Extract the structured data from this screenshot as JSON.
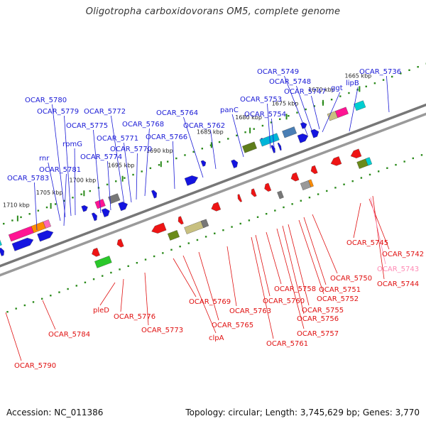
{
  "title": "Oligotropha carboxidovorans OM5, complete genome",
  "footer": {
    "accession": "Accession: NC_011386",
    "summary": "Topology: circular; Length: 3,745,629 bp; Genes: 3,770"
  },
  "colors": {
    "backbone": "#8a8a8a",
    "forward_label": "#1a1ad6",
    "reverse_label": "#e01010",
    "pseudo_label": "#ff8ab4",
    "tick": "#2a8a1a"
  },
  "scale": {
    "ticks": [
      "1710 kbp",
      "1705 kbp",
      "1700 kbp",
      "1695 kbp",
      "1690 kbp",
      "1685 kbp",
      "1680 kbp",
      "1675 kbp",
      "1670 kbp",
      "1665 kbp"
    ]
  },
  "forward_labels": [
    "OCAR_5783",
    "rnr",
    "OCAR_5781",
    "rpmG",
    "OCAR_5779",
    "OCAR_5780",
    "OCAR_5775",
    "OCAR_5774",
    "OCAR_5772",
    "OCAR_5771",
    "OCAR_5770",
    "OCAR_5768",
    "OCAR_5766",
    "OCAR_5764",
    "OCAR_5762",
    "panC",
    "OCAR_5753",
    "OCAR_5754",
    "OCAR_5749",
    "OCAR_5748",
    "OCAR_5747",
    "ggt",
    "lipB",
    "OCAR_5736"
  ],
  "reverse_labels": [
    "OCAR_5790",
    "OCAR_5784",
    "pleD",
    "OCAR_5776",
    "OCAR_5773",
    "OCAR_5769",
    "clpA",
    "OCAR_5765",
    "OCAR_5763",
    "OCAR_5761",
    "OCAR_5760",
    "OCAR_5758",
    "OCAR_5757",
    "OCAR_5756",
    "OCAR_5755",
    "OCAR_5752",
    "OCAR_5751",
    "OCAR_5750",
    "OCAR_5745",
    "OCAR_5742",
    "OCAR_5744"
  ],
  "pseudo_labels": [
    "OCAR_5743"
  ]
}
